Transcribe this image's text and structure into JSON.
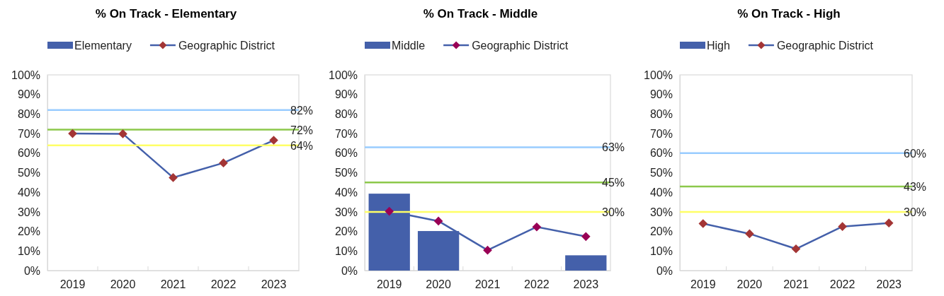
{
  "chart_data": [
    {
      "type": "bar",
      "title": "% On Track - Elementary",
      "categories": [
        "2019",
        "2020",
        "2021",
        "2022",
        "2023"
      ],
      "ylim": [
        0,
        1
      ],
      "yticks": [
        {
          "value": 0,
          "label": "0%"
        },
        {
          "value": 0.1,
          "label": "10%"
        },
        {
          "value": 0.2,
          "label": "20%"
        },
        {
          "value": 0.3,
          "label": "30%"
        },
        {
          "value": 0.4,
          "label": "40%"
        },
        {
          "value": 0.5,
          "label": "50%"
        },
        {
          "value": 0.6,
          "label": "60%"
        },
        {
          "value": 0.7,
          "label": "70%"
        },
        {
          "value": 0.8,
          "label": "80%"
        },
        {
          "value": 0.9,
          "label": "90%"
        },
        {
          "value": 1,
          "label": "100%"
        }
      ],
      "legend": "top",
      "marker": "diamond",
      "series": [
        {
          "name": "Elementary",
          "color": "#4460aa",
          "values": [
            null,
            null,
            null,
            null,
            null
          ]
        },
        {
          "name": "Geographic District",
          "type": "line",
          "color": "#4460aa",
          "colors": [
            "#a33535",
            "#a33535",
            "#a33535",
            "#a33535",
            "#a33535"
          ],
          "values": [
            0.7,
            0.699,
            0.475,
            0.55,
            0.666
          ]
        }
      ],
      "ref_lines": [
        {
          "axis": "y",
          "value": 0.82,
          "label": "82%",
          "color": "#99ccff"
        },
        {
          "axis": "y",
          "value": 0.72,
          "label": "72%",
          "color": "#8cc84b"
        },
        {
          "axis": "y",
          "value": 0.64,
          "label": "64%",
          "color": "#ffff66"
        }
      ]
    },
    {
      "type": "bar",
      "title": "% On Track - Middle",
      "categories": [
        "2019",
        "2020",
        "2021",
        "2022",
        "2023"
      ],
      "ylim": [
        0,
        1
      ],
      "yticks": [
        {
          "value": 0,
          "label": "0%"
        },
        {
          "value": 0.1,
          "label": "10%"
        },
        {
          "value": 0.2,
          "label": "20%"
        },
        {
          "value": 0.3,
          "label": "30%"
        },
        {
          "value": 0.4,
          "label": "40%"
        },
        {
          "value": 0.5,
          "label": "50%"
        },
        {
          "value": 0.6,
          "label": "60%"
        },
        {
          "value": 0.7,
          "label": "70%"
        },
        {
          "value": 0.8,
          "label": "80%"
        },
        {
          "value": 0.9,
          "label": "90%"
        },
        {
          "value": 1,
          "label": "100%"
        }
      ],
      "legend": "top",
      "marker": "diamond",
      "series": [
        {
          "name": "Middle",
          "color": "#4460aa",
          "values": [
            0.393,
            0.202,
            null,
            null,
            0.078
          ]
        },
        {
          "name": "Geographic District",
          "type": "line",
          "color": "#4460aa",
          "colors": [
            "#990055",
            "#990055",
            "#990055",
            "#990055",
            "#990055"
          ],
          "values": [
            0.303,
            0.253,
            0.104,
            0.223,
            0.174
          ]
        }
      ],
      "ref_lines": [
        {
          "axis": "y",
          "value": 0.63,
          "label": "63%",
          "color": "#99ccff"
        },
        {
          "axis": "y",
          "value": 0.45,
          "label": "45%",
          "color": "#8cc84b"
        },
        {
          "axis": "y",
          "value": 0.3,
          "label": "30%",
          "color": "#ffff66"
        }
      ]
    },
    {
      "type": "bar",
      "title": "% On Track - High",
      "categories": [
        "2019",
        "2020",
        "2021",
        "2022",
        "2023"
      ],
      "ylim": [
        0,
        1
      ],
      "yticks": [
        {
          "value": 0,
          "label": "0%"
        },
        {
          "value": 0.1,
          "label": "10%"
        },
        {
          "value": 0.2,
          "label": "20%"
        },
        {
          "value": 0.3,
          "label": "30%"
        },
        {
          "value": 0.4,
          "label": "40%"
        },
        {
          "value": 0.5,
          "label": "50%"
        },
        {
          "value": 0.6,
          "label": "60%"
        },
        {
          "value": 0.7,
          "label": "70%"
        },
        {
          "value": 0.8,
          "label": "80%"
        },
        {
          "value": 0.9,
          "label": "90%"
        },
        {
          "value": 1,
          "label": "100%"
        }
      ],
      "legend": "top",
      "marker": "diamond",
      "series": [
        {
          "name": "High",
          "color": "#4460aa",
          "values": [
            null,
            null,
            null,
            null,
            null
          ]
        },
        {
          "name": "Geographic District",
          "type": "line",
          "color": "#4460aa",
          "colors": [
            "#a33535",
            "#a33535",
            "#a33535",
            "#a33535",
            "#a33535"
          ],
          "values": [
            0.24,
            0.188,
            0.111,
            0.225,
            0.243
          ]
        }
      ],
      "ref_lines": [
        {
          "axis": "y",
          "value": 0.6,
          "label": "60%",
          "color": "#99ccff"
        },
        {
          "axis": "y",
          "value": 0.43,
          "label": "43%",
          "color": "#8cc84b"
        },
        {
          "axis": "y",
          "value": 0.3,
          "label": "30%",
          "color": "#ffff66"
        }
      ]
    }
  ]
}
